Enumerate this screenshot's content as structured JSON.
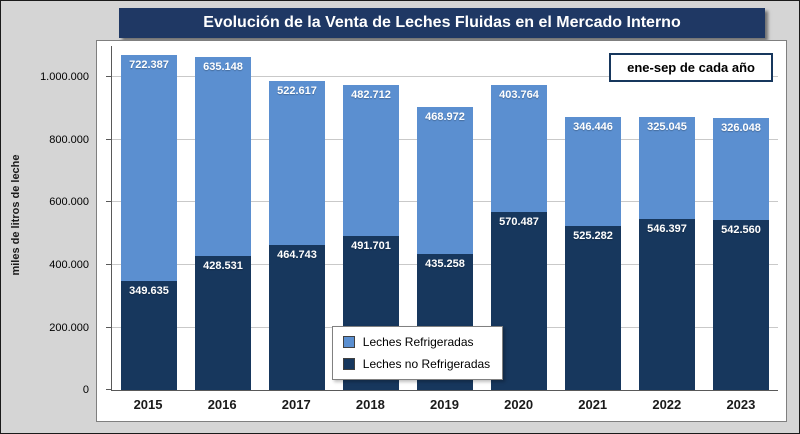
{
  "window": {
    "title": "Evolución de la Venta de Leches Fluidas en el Mercado Interno"
  },
  "chart_data": {
    "type": "bar",
    "stacked": true,
    "title": "Evolución de la Venta de Leches Fluidas en el Mercado Interno",
    "annotation": "ene-sep de cada año",
    "ylabel": "miles de litros de leche",
    "xlabel": "",
    "categories": [
      "2015",
      "2016",
      "2017",
      "2018",
      "2019",
      "2020",
      "2021",
      "2022",
      "2023"
    ],
    "series": [
      {
        "name": "Leches no Refrigeradas",
        "color": "#17375D",
        "values": [
          349635,
          428531,
          464743,
          491701,
          435258,
          570487,
          525282,
          546397,
          542560
        ],
        "labels": [
          "349.635",
          "428.531",
          "464.743",
          "491.701",
          "435.258",
          "570.487",
          "525.282",
          "546.397",
          "542.560"
        ]
      },
      {
        "name": "Leches Refrigeradas",
        "color": "#5B8FD0",
        "values": [
          722387,
          635148,
          522617,
          482712,
          468972,
          403764,
          346446,
          325045,
          326048
        ],
        "labels": [
          "722.387",
          "635.148",
          "522.617",
          "482.712",
          "468.972",
          "403.764",
          "346.446",
          "325.045",
          "326.048"
        ]
      }
    ],
    "ylim": [
      0,
      1100000
    ],
    "ytick_interval": 200000,
    "yticks": [
      {
        "value": 0,
        "label": "0"
      },
      {
        "value": 200000,
        "label": "200.000"
      },
      {
        "value": 400000,
        "label": "400.000"
      },
      {
        "value": 600000,
        "label": "600.000"
      },
      {
        "value": 800000,
        "label": "800.000"
      },
      {
        "value": 1000000,
        "label": "1.000.000"
      }
    ],
    "legend": [
      {
        "label": "Leches Refrigeradas",
        "color": "#5B8FD0"
      },
      {
        "label": "Leches no Refrigeradas",
        "color": "#17375D"
      }
    ],
    "legend_position": "bottom-center-inside",
    "grid": true
  }
}
